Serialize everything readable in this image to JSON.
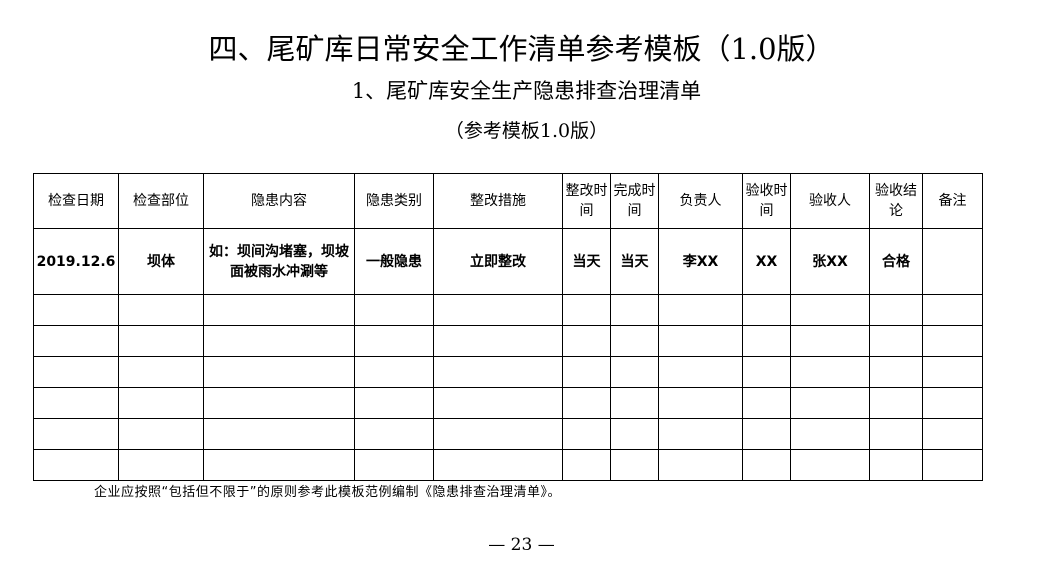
{
  "title": "四、尾矿库日常安全工作清单参考模板（1.0版）",
  "subtitle": "1、尾矿库安全生产隐患排查治理清单",
  "subtitle2": "（参考模板1.0版）",
  "table": {
    "headers": [
      "检查日期",
      "检查部位",
      "隐患内容",
      "隐患类别",
      "整改措施",
      "整改时间",
      "完成时间",
      "负责人",
      "验收时间",
      "验收人",
      "验收结论",
      "备注"
    ],
    "rows": [
      [
        "2019.12.6",
        "坝体",
        "如：坝间沟堵塞，坝坡面被雨水冲涮等",
        "一般隐患",
        "立即整改",
        "当天",
        "当天",
        "李XX",
        "XX",
        "张XX",
        "合格",
        ""
      ]
    ],
    "empty_rows": 6
  },
  "note": "企业应按照“包括但不限于”的原则参考此模板范例编制《隐患排查治理清单》。",
  "page_number": "— 23 —"
}
